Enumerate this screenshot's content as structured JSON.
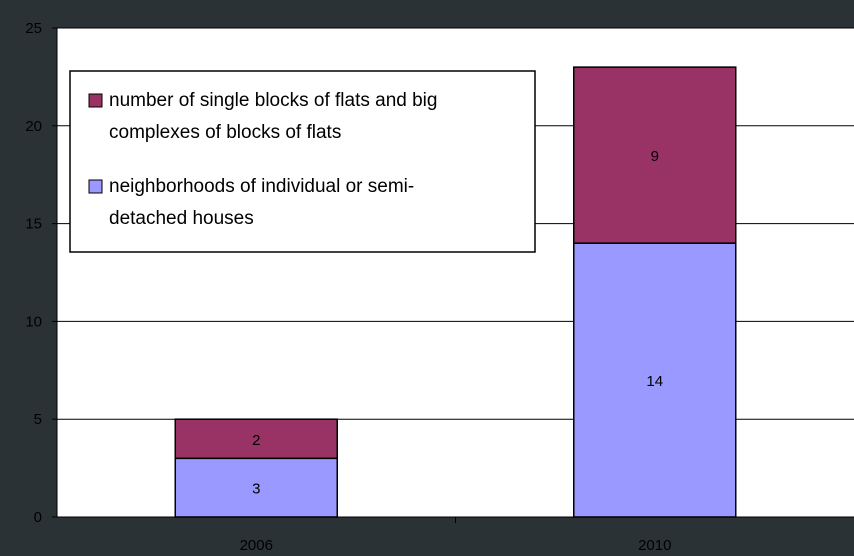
{
  "chart_data": {
    "type": "bar",
    "stacked": true,
    "categories": [
      "2006",
      "2010"
    ],
    "series": [
      {
        "name": "neighborhoods of individual or semi-detached houses",
        "name_lines": [
          "neighborhoods of individual or semi-",
          "detached houses"
        ],
        "values": [
          3,
          14
        ],
        "color": "#9999ff"
      },
      {
        "name": "number of single blocks of flats and big complexes of blocks of flats",
        "name_lines": [
          "number of single blocks of flats and big",
          "complexes of blocks of flats"
        ],
        "values": [
          2,
          9
        ],
        "color": "#993366"
      }
    ],
    "ylim": [
      0,
      25
    ],
    "yticks": [
      0,
      5,
      10,
      15,
      20,
      25
    ],
    "grid": true,
    "legend_position": "top-left",
    "legend_order": [
      1,
      0
    ],
    "data_labels": true,
    "title": "",
    "xlabel": "",
    "ylabel": ""
  },
  "colors": {
    "background": "#2b3236",
    "plot_area": "#ffffff",
    "gridline": "#000000",
    "bar_outline": "#000000"
  }
}
